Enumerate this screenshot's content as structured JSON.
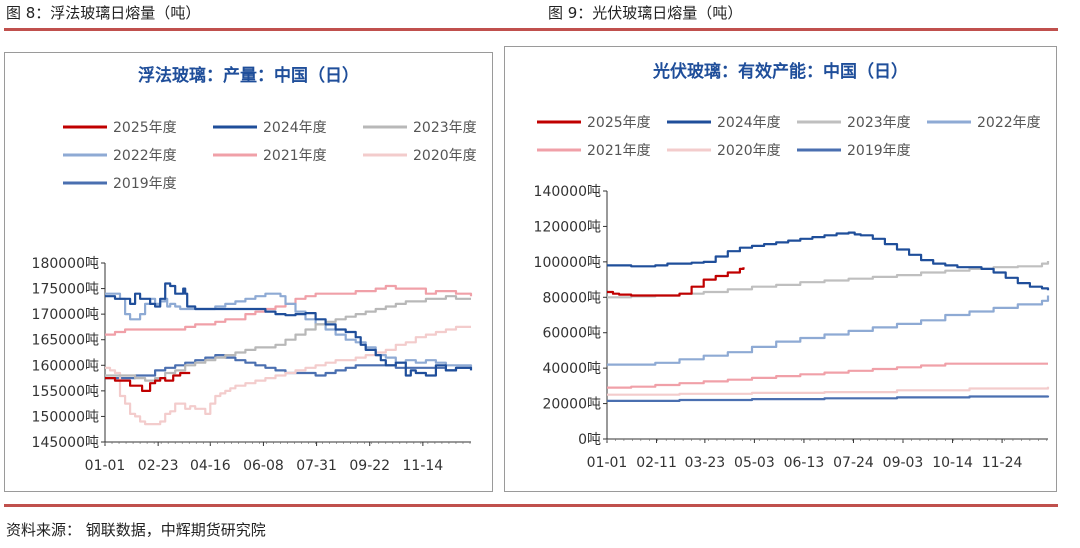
{
  "figures": [
    {
      "label": "图 8：浮法玻璃日熔量（吨）"
    },
    {
      "label": "图 9：光伏玻璃日熔量（吨）"
    }
  ],
  "source": "资料来源：  钢联数据，中辉期货研究院",
  "chart_data": [
    {
      "type": "line",
      "title": "浮法玻璃：产量：中国（日）",
      "ylim": [
        145000,
        180000
      ],
      "yticks": [
        "145000吨",
        "150000吨",
        "155000吨",
        "160000吨",
        "165000吨",
        "170000吨",
        "175000吨",
        "180000吨"
      ],
      "ytick_values": [
        145000,
        150000,
        155000,
        160000,
        165000,
        170000,
        175000,
        180000
      ],
      "xticks": [
        "01-01",
        "02-23",
        "04-16",
        "06-08",
        "07-31",
        "09-22",
        "11-14"
      ],
      "xtick_days": [
        0,
        53,
        105,
        158,
        211,
        264,
        317
      ],
      "x_max_day": 365,
      "grid": false,
      "legend_position": "top",
      "series": [
        {
          "name": "2025年度",
          "color": "#c00000",
          "x": [
            0,
            10,
            20,
            25,
            30,
            37,
            40,
            45,
            50,
            55,
            60,
            68,
            75,
            80,
            85
          ],
          "y": [
            157500,
            157000,
            157000,
            156000,
            156000,
            155000,
            155000,
            156500,
            157000,
            157500,
            157000,
            158000,
            158500,
            158500,
            158500
          ]
        },
        {
          "name": "2024年度",
          "color": "#1f4e9a",
          "x": [
            0,
            10,
            20,
            25,
            30,
            35,
            40,
            45,
            50,
            55,
            60,
            62,
            65,
            70,
            75,
            78,
            80,
            82,
            90,
            100,
            110,
            120,
            130,
            140,
            150,
            160,
            170,
            180,
            190,
            200,
            210,
            220,
            230,
            240,
            250,
            255,
            260,
            270,
            275,
            280,
            290,
            300,
            305,
            310,
            320,
            330,
            340,
            350,
            360,
            365
          ],
          "y": [
            173500,
            173000,
            173000,
            172000,
            174000,
            173000,
            173000,
            172000,
            171500,
            173000,
            176000,
            176000,
            175500,
            174000,
            174000,
            175000,
            174000,
            171500,
            171000,
            171000,
            171000,
            171000,
            171000,
            171000,
            171000,
            170500,
            170000,
            169800,
            170000,
            170200,
            169000,
            168000,
            167000,
            166500,
            165500,
            164000,
            163000,
            162000,
            161000,
            160000,
            160500,
            158000,
            159000,
            158500,
            158000,
            160000,
            159000,
            159500,
            159500,
            159000
          ]
        },
        {
          "name": "2023年度",
          "color": "#b8b8b8",
          "x": [
            0,
            10,
            20,
            30,
            40,
            50,
            60,
            70,
            80,
            90,
            100,
            110,
            120,
            130,
            140,
            150,
            160,
            170,
            180,
            190,
            200,
            210,
            220,
            230,
            240,
            250,
            260,
            270,
            280,
            290,
            300,
            310,
            320,
            330,
            340,
            350,
            360,
            365
          ],
          "y": [
            158000,
            158000,
            158000,
            157500,
            157000,
            157500,
            158500,
            159000,
            160000,
            160500,
            161000,
            161500,
            162000,
            162500,
            163000,
            163500,
            163500,
            164000,
            165000,
            166000,
            167000,
            168000,
            168500,
            169000,
            169500,
            170000,
            170500,
            171000,
            171500,
            172000,
            172500,
            172500,
            173000,
            173000,
            173500,
            173000,
            173000,
            173000
          ]
        },
        {
          "name": "2022年度",
          "color": "#8eaad4",
          "x": [
            0,
            10,
            15,
            20,
            25,
            30,
            35,
            40,
            45,
            50,
            55,
            60,
            62,
            65,
            70,
            75,
            80,
            90,
            100,
            110,
            120,
            130,
            140,
            150,
            160,
            170,
            175,
            180,
            190,
            200,
            210,
            220,
            230,
            240,
            250,
            260,
            270,
            280,
            290,
            300,
            310,
            320,
            330,
            340,
            350,
            360,
            365
          ],
          "y": [
            174000,
            174000,
            173000,
            170000,
            169000,
            169000,
            170000,
            172000,
            173000,
            172000,
            172500,
            173000,
            171500,
            172000,
            171500,
            171000,
            171000,
            171000,
            171000,
            171500,
            172000,
            172500,
            173000,
            173500,
            174000,
            174000,
            173500,
            172000,
            170500,
            169000,
            168000,
            167000,
            166000,
            165000,
            164500,
            163500,
            162000,
            161500,
            160500,
            161000,
            160500,
            161000,
            160500,
            160000,
            160000,
            160000,
            159500
          ]
        },
        {
          "name": "2021年度",
          "color": "#f0a0a8",
          "x": [
            0,
            10,
            20,
            30,
            40,
            50,
            60,
            70,
            80,
            90,
            100,
            110,
            120,
            130,
            140,
            150,
            160,
            170,
            180,
            190,
            200,
            210,
            220,
            230,
            240,
            250,
            260,
            270,
            280,
            290,
            300,
            310,
            320,
            330,
            340,
            350,
            360,
            365
          ],
          "y": [
            166000,
            166500,
            167000,
            167000,
            167000,
            167000,
            167000,
            167000,
            167500,
            168000,
            168000,
            168500,
            169000,
            169000,
            170000,
            170500,
            171000,
            171500,
            172000,
            173000,
            173500,
            174000,
            174000,
            174000,
            174000,
            174500,
            174500,
            175000,
            175500,
            175000,
            175000,
            175000,
            174000,
            174500,
            174500,
            174000,
            174000,
            173500
          ]
        },
        {
          "name": "2020年度",
          "color": "#f3cccc",
          "x": [
            0,
            5,
            10,
            15,
            20,
            25,
            30,
            35,
            40,
            45,
            50,
            55,
            60,
            65,
            70,
            75,
            80,
            85,
            90,
            95,
            100,
            105,
            110,
            115,
            120,
            125,
            130,
            140,
            150,
            160,
            170,
            180,
            190,
            200,
            210,
            220,
            230,
            240,
            250,
            260,
            270,
            280,
            290,
            300,
            310,
            320,
            330,
            340,
            350,
            360,
            365
          ],
          "y": [
            159500,
            159000,
            158500,
            154000,
            152500,
            150500,
            150000,
            149000,
            148500,
            148500,
            148500,
            149000,
            150500,
            151000,
            152500,
            152500,
            151500,
            152000,
            151500,
            151500,
            150500,
            152500,
            154000,
            154500,
            155000,
            155500,
            156000,
            156500,
            157000,
            157500,
            158000,
            158500,
            159000,
            159500,
            160000,
            160500,
            161000,
            161000,
            161500,
            162000,
            162500,
            163000,
            164000,
            164500,
            165500,
            166000,
            166500,
            167000,
            167500,
            167500,
            167500
          ]
        },
        {
          "name": "2019年度",
          "color": "#4a6fb0",
          "x": [
            0,
            10,
            20,
            30,
            40,
            50,
            60,
            70,
            80,
            90,
            100,
            110,
            120,
            130,
            140,
            150,
            160,
            170,
            180,
            190,
            200,
            210,
            220,
            230,
            240,
            250,
            260,
            270,
            280,
            290,
            300,
            310,
            320,
            330,
            340,
            350,
            360,
            365
          ],
          "y": [
            157500,
            157500,
            157500,
            158000,
            158000,
            159000,
            159500,
            160000,
            160500,
            161000,
            161500,
            162000,
            161500,
            161000,
            160500,
            160000,
            159500,
            159000,
            158500,
            158500,
            158500,
            158000,
            158500,
            159000,
            159500,
            160000,
            160000,
            160000,
            160000,
            159500,
            159500,
            159500,
            159500,
            159500,
            159000,
            159500,
            159500,
            159500
          ]
        }
      ]
    },
    {
      "type": "line",
      "title": "光伏玻璃：有效产能：中国（日）",
      "ylim": [
        0,
        140000
      ],
      "yticks": [
        "0吨",
        "20000吨",
        "40000吨",
        "60000吨",
        "80000吨",
        "100000吨",
        "120000吨",
        "140000吨"
      ],
      "ytick_values": [
        0,
        20000,
        40000,
        60000,
        80000,
        100000,
        120000,
        140000
      ],
      "xticks": [
        "01-01",
        "02-11",
        "03-23",
        "05-03",
        "06-13",
        "07-24",
        "09-03",
        "10-14",
        "11-24"
      ],
      "xtick_days": [
        0,
        41,
        81,
        122,
        163,
        204,
        245,
        286,
        327
      ],
      "x_max_day": 365,
      "grid": false,
      "legend_position": "top",
      "series": [
        {
          "name": "2025年度",
          "color": "#c00000",
          "x": [
            0,
            5,
            10,
            20,
            30,
            40,
            50,
            60,
            70,
            80,
            90,
            100,
            110,
            113
          ],
          "y": [
            83000,
            82000,
            81500,
            81000,
            81000,
            81000,
            81000,
            82000,
            86000,
            90000,
            92000,
            94000,
            96000,
            97000
          ]
        },
        {
          "name": "2024年度",
          "color": "#1f4e9a",
          "x": [
            0,
            20,
            40,
            50,
            60,
            70,
            80,
            90,
            100,
            110,
            120,
            130,
            140,
            150,
            160,
            170,
            180,
            190,
            200,
            205,
            210,
            220,
            230,
            240,
            250,
            260,
            270,
            280,
            290,
            300,
            310,
            320,
            330,
            340,
            350,
            360,
            365
          ],
          "y": [
            98000,
            97500,
            98000,
            99000,
            99000,
            99500,
            100000,
            103000,
            106000,
            108000,
            109000,
            110000,
            111000,
            112000,
            113000,
            114000,
            115000,
            116000,
            116500,
            115500,
            115000,
            113000,
            110000,
            107000,
            104000,
            101000,
            99000,
            98000,
            97000,
            97000,
            96000,
            94000,
            91000,
            88000,
            86000,
            85000,
            84000
          ]
        },
        {
          "name": "2023年度",
          "color": "#bfbfbf",
          "x": [
            0,
            20,
            40,
            60,
            80,
            100,
            120,
            140,
            160,
            180,
            200,
            220,
            240,
            260,
            280,
            300,
            320,
            340,
            360,
            365
          ],
          "y": [
            80000,
            80500,
            81000,
            82000,
            83000,
            84500,
            86000,
            87000,
            88500,
            89500,
            90500,
            91500,
            92500,
            94000,
            95000,
            96000,
            97000,
            97500,
            99000,
            100500
          ]
        },
        {
          "name": "2022年度",
          "color": "#8eaad4",
          "x": [
            0,
            20,
            40,
            60,
            80,
            100,
            120,
            140,
            160,
            180,
            200,
            220,
            240,
            260,
            280,
            300,
            320,
            340,
            360,
            365
          ],
          "y": [
            42000,
            42000,
            43000,
            45000,
            47000,
            49000,
            52000,
            55000,
            57000,
            59000,
            61000,
            63000,
            65000,
            67000,
            70000,
            72000,
            74000,
            76000,
            78000,
            81000
          ]
        },
        {
          "name": "2021年度",
          "color": "#f0a0a8",
          "x": [
            0,
            20,
            40,
            60,
            80,
            100,
            120,
            140,
            160,
            180,
            200,
            220,
            240,
            260,
            280,
            300,
            320,
            340,
            360,
            365
          ],
          "y": [
            29000,
            29500,
            30500,
            31500,
            32500,
            33500,
            34500,
            35500,
            36500,
            37500,
            38500,
            39500,
            40500,
            41500,
            42500,
            42500,
            42500,
            42500,
            42500,
            42500
          ]
        },
        {
          "name": "2020年度",
          "color": "#f3cccc",
          "x": [
            0,
            60,
            120,
            180,
            240,
            300,
            365
          ],
          "y": [
            25000,
            25500,
            26000,
            26500,
            27500,
            28500,
            29500
          ]
        },
        {
          "name": "2019年度",
          "color": "#4a6fb0",
          "x": [
            0,
            60,
            120,
            180,
            240,
            300,
            365
          ],
          "y": [
            21500,
            22000,
            22500,
            23000,
            23500,
            24000,
            24500
          ]
        }
      ]
    }
  ]
}
